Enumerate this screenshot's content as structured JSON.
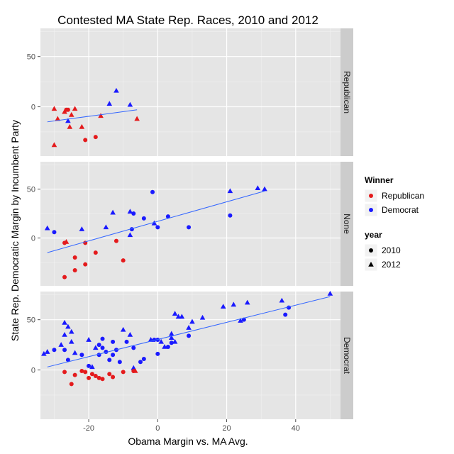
{
  "chart_data": {
    "type": "scatter",
    "title": "Contested MA State Rep. Races, 2010 and 2012",
    "xlabel": "Obama Margin vs. MA Avg.",
    "ylabel": "State Rep. Democratic Margin by Incumbent Party",
    "xlim": [
      -34,
      53
    ],
    "ylim": [
      -49,
      78
    ],
    "x_ticks": [
      -20,
      0,
      20,
      40
    ],
    "x_tick_labels": [
      "-20",
      "0",
      "20",
      "40"
    ],
    "y_ticks": [
      0,
      50
    ],
    "y_tick_labels": [
      "0",
      "50"
    ],
    "legend": {
      "position": "right",
      "color_title": "Winner",
      "color_items": [
        {
          "label": "Republican",
          "color": "#e41a1c"
        },
        {
          "label": "Democrat",
          "color": "#1a1aff"
        }
      ],
      "shape_title": "year",
      "shape_items": [
        {
          "label": "2010",
          "shape": "circle"
        },
        {
          "label": "2012",
          "shape": "triangle"
        }
      ]
    },
    "colors": {
      "Republican": "#e41a1c",
      "Democrat": "#1a1aff",
      "fit_line": "#3366ff"
    },
    "facets": [
      {
        "label": "Republican",
        "fit": [
          [
            -32,
            -15
          ],
          [
            -6,
            -3
          ]
        ],
        "points": [
          {
            "x": -30,
            "y": -2,
            "w": "Republican",
            "yr": "2012"
          },
          {
            "x": -29,
            "y": -12,
            "w": "Republican",
            "yr": "2012"
          },
          {
            "x": -27,
            "y": -5,
            "w": "Republican",
            "yr": "2012"
          },
          {
            "x": -26.5,
            "y": -3,
            "w": "Republican",
            "yr": "2010"
          },
          {
            "x": -26,
            "y": -3,
            "w": "Republican",
            "yr": "2010"
          },
          {
            "x": -24,
            "y": -2,
            "w": "Republican",
            "yr": "2012"
          },
          {
            "x": -25,
            "y": -8,
            "w": "Republican",
            "yr": "2012"
          },
          {
            "x": -25.5,
            "y": -20,
            "w": "Republican",
            "yr": "2012"
          },
          {
            "x": -22,
            "y": -20,
            "w": "Republican",
            "yr": "2012"
          },
          {
            "x": -21,
            "y": -33,
            "w": "Republican",
            "yr": "2010"
          },
          {
            "x": -18,
            "y": -30,
            "w": "Republican",
            "yr": "2010"
          },
          {
            "x": -30,
            "y": -38,
            "w": "Republican",
            "yr": "2012"
          },
          {
            "x": -16.5,
            "y": -9,
            "w": "Republican",
            "yr": "2012"
          },
          {
            "x": -6,
            "y": -12,
            "w": "Republican",
            "yr": "2012"
          },
          {
            "x": -26,
            "y": -14,
            "w": "Democrat",
            "yr": "2012"
          },
          {
            "x": -14,
            "y": 3,
            "w": "Democrat",
            "yr": "2012"
          },
          {
            "x": -12,
            "y": 16,
            "w": "Democrat",
            "yr": "2012"
          },
          {
            "x": -8,
            "y": 2,
            "w": "Democrat",
            "yr": "2012"
          }
        ]
      },
      {
        "label": "None",
        "fit": [
          [
            -32,
            -15
          ],
          [
            31,
            48
          ]
        ],
        "points": [
          {
            "x": -32,
            "y": 10,
            "w": "Democrat",
            "yr": "2012"
          },
          {
            "x": -30,
            "y": 6,
            "w": "Democrat",
            "yr": "2010"
          },
          {
            "x": -22,
            "y": 9,
            "w": "Democrat",
            "yr": "2012"
          },
          {
            "x": -15,
            "y": 11,
            "w": "Democrat",
            "yr": "2012"
          },
          {
            "x": -13,
            "y": 26,
            "w": "Democrat",
            "yr": "2012"
          },
          {
            "x": -8,
            "y": 27,
            "w": "Democrat",
            "yr": "2012"
          },
          {
            "x": -7,
            "y": 25,
            "w": "Democrat",
            "yr": "2010"
          },
          {
            "x": -7.5,
            "y": 9,
            "w": "Democrat",
            "yr": "2010"
          },
          {
            "x": -8,
            "y": 3,
            "w": "Democrat",
            "yr": "2012"
          },
          {
            "x": -4,
            "y": 20,
            "w": "Democrat",
            "yr": "2010"
          },
          {
            "x": -1,
            "y": 15,
            "w": "Democrat",
            "yr": "2012"
          },
          {
            "x": 0,
            "y": 11,
            "w": "Democrat",
            "yr": "2010"
          },
          {
            "x": -1.5,
            "y": 47,
            "w": "Democrat",
            "yr": "2010"
          },
          {
            "x": 3,
            "y": 22,
            "w": "Democrat",
            "yr": "2010"
          },
          {
            "x": 9,
            "y": 11,
            "w": "Democrat",
            "yr": "2010"
          },
          {
            "x": 21,
            "y": 48,
            "w": "Democrat",
            "yr": "2012"
          },
          {
            "x": 21,
            "y": 23,
            "w": "Democrat",
            "yr": "2010"
          },
          {
            "x": 29,
            "y": 51,
            "w": "Democrat",
            "yr": "2012"
          },
          {
            "x": 31,
            "y": 50,
            "w": "Democrat",
            "yr": "2012"
          },
          {
            "x": -27,
            "y": -5,
            "w": "Republican",
            "yr": "2010"
          },
          {
            "x": -26.5,
            "y": -4,
            "w": "Republican",
            "yr": "2012"
          },
          {
            "x": -27,
            "y": -40,
            "w": "Republican",
            "yr": "2010"
          },
          {
            "x": -24,
            "y": -20,
            "w": "Republican",
            "yr": "2010"
          },
          {
            "x": -24,
            "y": -33,
            "w": "Republican",
            "yr": "2010"
          },
          {
            "x": -21,
            "y": -5,
            "w": "Republican",
            "yr": "2010"
          },
          {
            "x": -21,
            "y": -27,
            "w": "Republican",
            "yr": "2010"
          },
          {
            "x": -18,
            "y": -15,
            "w": "Republican",
            "yr": "2010"
          },
          {
            "x": -12,
            "y": -3,
            "w": "Republican",
            "yr": "2010"
          },
          {
            "x": -10,
            "y": -23,
            "w": "Republican",
            "yr": "2010"
          }
        ]
      },
      {
        "label": "Democrat",
        "fit": [
          [
            -32,
            3
          ],
          [
            50,
            73
          ]
        ],
        "points": [
          {
            "x": -33,
            "y": 16,
            "w": "Democrat",
            "yr": "2012"
          },
          {
            "x": -32,
            "y": 18,
            "w": "Democrat",
            "yr": "2012"
          },
          {
            "x": -30,
            "y": 20,
            "w": "Democrat",
            "yr": "2010"
          },
          {
            "x": -28,
            "y": 25,
            "w": "Democrat",
            "yr": "2012"
          },
          {
            "x": -27,
            "y": 35,
            "w": "Democrat",
            "yr": "2012"
          },
          {
            "x": -27,
            "y": 47,
            "w": "Democrat",
            "yr": "2012"
          },
          {
            "x": -26,
            "y": 43,
            "w": "Democrat",
            "yr": "2012"
          },
          {
            "x": -25,
            "y": 38,
            "w": "Democrat",
            "yr": "2012"
          },
          {
            "x": -25,
            "y": 28,
            "w": "Democrat",
            "yr": "2012"
          },
          {
            "x": -27,
            "y": 20,
            "w": "Democrat",
            "yr": "2010"
          },
          {
            "x": -26,
            "y": 10,
            "w": "Democrat",
            "yr": "2010"
          },
          {
            "x": -24,
            "y": 17,
            "w": "Democrat",
            "yr": "2012"
          },
          {
            "x": -22,
            "y": 15,
            "w": "Democrat",
            "yr": "2010"
          },
          {
            "x": -20,
            "y": 30,
            "w": "Democrat",
            "yr": "2012"
          },
          {
            "x": -20,
            "y": 4,
            "w": "Democrat",
            "yr": "2010"
          },
          {
            "x": -19,
            "y": 3,
            "w": "Democrat",
            "yr": "2012"
          },
          {
            "x": -18,
            "y": 22,
            "w": "Democrat",
            "yr": "2012"
          },
          {
            "x": -17,
            "y": 25,
            "w": "Democrat",
            "yr": "2010"
          },
          {
            "x": -17,
            "y": 15,
            "w": "Democrat",
            "yr": "2010"
          },
          {
            "x": -16,
            "y": 31,
            "w": "Democrat",
            "yr": "2010"
          },
          {
            "x": -16,
            "y": 22,
            "w": "Democrat",
            "yr": "2010"
          },
          {
            "x": -15,
            "y": 18,
            "w": "Democrat",
            "yr": "2010"
          },
          {
            "x": -14,
            "y": 10,
            "w": "Democrat",
            "yr": "2010"
          },
          {
            "x": -13,
            "y": 28,
            "w": "Democrat",
            "yr": "2010"
          },
          {
            "x": -13,
            "y": 15,
            "w": "Democrat",
            "yr": "2010"
          },
          {
            "x": -12,
            "y": 20,
            "w": "Democrat",
            "yr": "2010"
          },
          {
            "x": -11,
            "y": 8,
            "w": "Democrat",
            "yr": "2010"
          },
          {
            "x": -10,
            "y": 40,
            "w": "Democrat",
            "yr": "2012"
          },
          {
            "x": -9,
            "y": 28,
            "w": "Democrat",
            "yr": "2010"
          },
          {
            "x": -8,
            "y": 35,
            "w": "Democrat",
            "yr": "2012"
          },
          {
            "x": -7,
            "y": 22,
            "w": "Democrat",
            "yr": "2010"
          },
          {
            "x": -7,
            "y": 2,
            "w": "Democrat",
            "yr": "2012"
          },
          {
            "x": -5,
            "y": 8,
            "w": "Democrat",
            "yr": "2010"
          },
          {
            "x": -4,
            "y": 11,
            "w": "Democrat",
            "yr": "2010"
          },
          {
            "x": -2,
            "y": 30,
            "w": "Democrat",
            "yr": "2012"
          },
          {
            "x": -1,
            "y": 30,
            "w": "Democrat",
            "yr": "2010"
          },
          {
            "x": 0,
            "y": 16,
            "w": "Democrat",
            "yr": "2010"
          },
          {
            "x": 0,
            "y": 30,
            "w": "Democrat",
            "yr": "2010"
          },
          {
            "x": 1,
            "y": 28,
            "w": "Democrat",
            "yr": "2012"
          },
          {
            "x": 2,
            "y": 23,
            "w": "Democrat",
            "yr": "2012"
          },
          {
            "x": 3,
            "y": 23,
            "w": "Democrat",
            "yr": "2010"
          },
          {
            "x": 4,
            "y": 32,
            "w": "Democrat",
            "yr": "2012"
          },
          {
            "x": 4,
            "y": 36,
            "w": "Democrat",
            "yr": "2012"
          },
          {
            "x": 4,
            "y": 27,
            "w": "Democrat",
            "yr": "2010"
          },
          {
            "x": 5,
            "y": 28,
            "w": "Democrat",
            "yr": "2012"
          },
          {
            "x": 5,
            "y": 56,
            "w": "Democrat",
            "yr": "2012"
          },
          {
            "x": 6,
            "y": 53,
            "w": "Democrat",
            "yr": "2012"
          },
          {
            "x": 7,
            "y": 53,
            "w": "Democrat",
            "yr": "2012"
          },
          {
            "x": 9,
            "y": 42,
            "w": "Democrat",
            "yr": "2012"
          },
          {
            "x": 9,
            "y": 34,
            "w": "Democrat",
            "yr": "2010"
          },
          {
            "x": 10,
            "y": 48,
            "w": "Democrat",
            "yr": "2012"
          },
          {
            "x": 13,
            "y": 52,
            "w": "Democrat",
            "yr": "2012"
          },
          {
            "x": 19,
            "y": 63,
            "w": "Democrat",
            "yr": "2012"
          },
          {
            "x": 22,
            "y": 65,
            "w": "Democrat",
            "yr": "2012"
          },
          {
            "x": 24,
            "y": 49,
            "w": "Democrat",
            "yr": "2012"
          },
          {
            "x": 25,
            "y": 50,
            "w": "Democrat",
            "yr": "2010"
          },
          {
            "x": 26,
            "y": 67,
            "w": "Democrat",
            "yr": "2012"
          },
          {
            "x": 36,
            "y": 69,
            "w": "Democrat",
            "yr": "2012"
          },
          {
            "x": 37,
            "y": 55,
            "w": "Democrat",
            "yr": "2010"
          },
          {
            "x": 38,
            "y": 62,
            "w": "Democrat",
            "yr": "2010"
          },
          {
            "x": 50,
            "y": 83,
            "w": "Democrat",
            "yr": "2012"
          },
          {
            "x": -27,
            "y": -2,
            "w": "Republican",
            "yr": "2010"
          },
          {
            "x": -25,
            "y": -14,
            "w": "Republican",
            "yr": "2010"
          },
          {
            "x": -24,
            "y": -5,
            "w": "Republican",
            "yr": "2010"
          },
          {
            "x": -22,
            "y": -1,
            "w": "Republican",
            "yr": "2010"
          },
          {
            "x": -21,
            "y": -2,
            "w": "Republican",
            "yr": "2010"
          },
          {
            "x": -20,
            "y": -8,
            "w": "Republican",
            "yr": "2010"
          },
          {
            "x": -19,
            "y": -4,
            "w": "Republican",
            "yr": "2010"
          },
          {
            "x": -18,
            "y": -6,
            "w": "Republican",
            "yr": "2010"
          },
          {
            "x": -17,
            "y": -8,
            "w": "Republican",
            "yr": "2010"
          },
          {
            "x": -16,
            "y": -9,
            "w": "Republican",
            "yr": "2010"
          },
          {
            "x": -14,
            "y": -4,
            "w": "Republican",
            "yr": "2010"
          },
          {
            "x": -13,
            "y": -7,
            "w": "Republican",
            "yr": "2010"
          },
          {
            "x": -10,
            "y": -2,
            "w": "Republican",
            "yr": "2010"
          },
          {
            "x": -7,
            "y": -1,
            "w": "Republican",
            "yr": "2010"
          },
          {
            "x": -6.5,
            "y": -1,
            "w": "Republican",
            "yr": "2012"
          }
        ]
      }
    ]
  }
}
